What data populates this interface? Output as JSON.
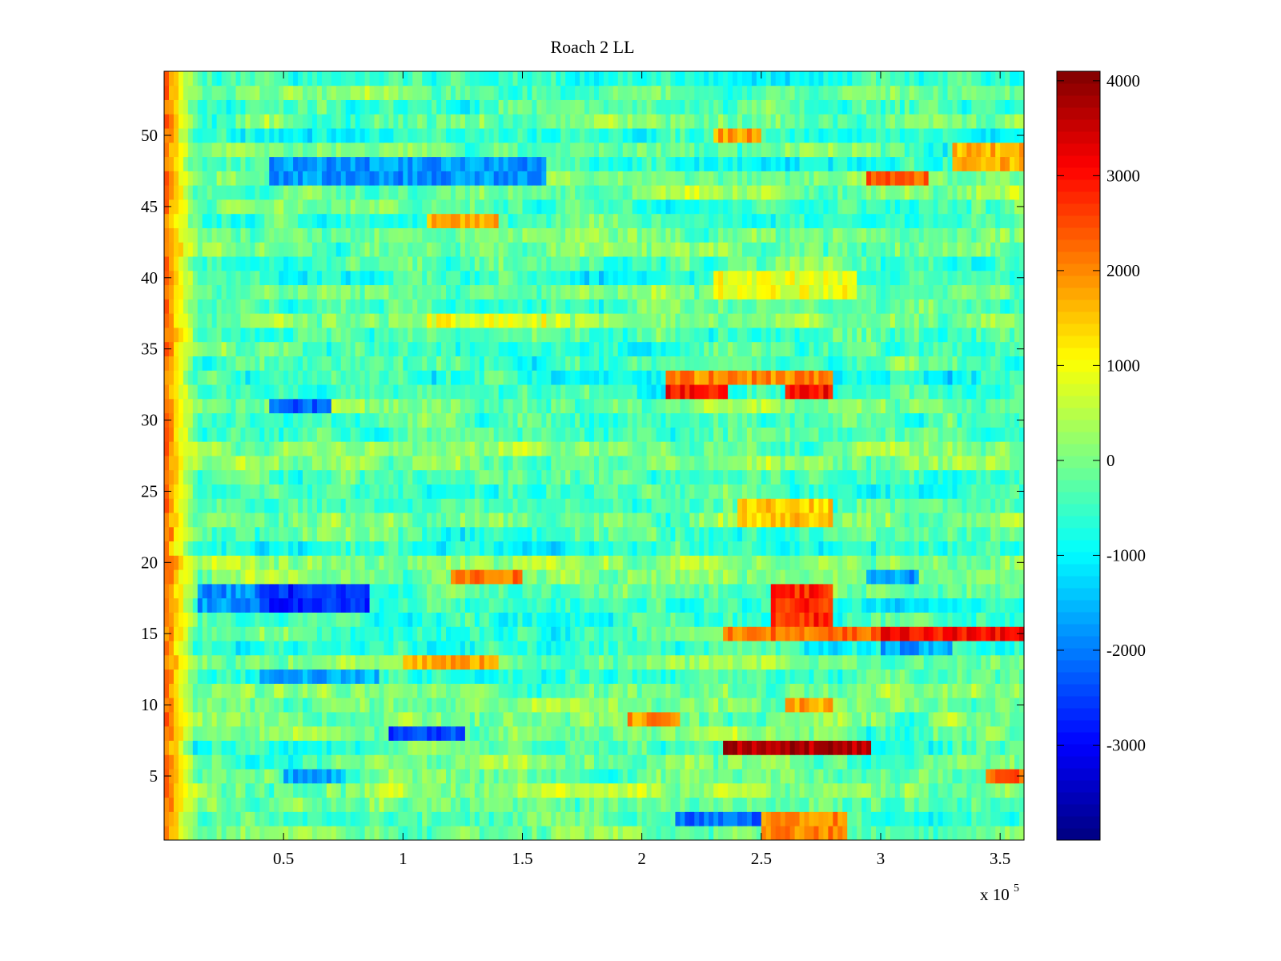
{
  "chart_data": {
    "type": "heatmap",
    "title": "Roach 2 LL",
    "xlabel": "",
    "ylabel": "",
    "x_multiplier_label": "x 10",
    "x_multiplier_exponent": "5",
    "xlim": [
      0,
      3.6
    ],
    "ylim": [
      0.5,
      54.5
    ],
    "x_ticks": [
      0.5,
      1,
      1.5,
      2,
      2.5,
      3,
      3.5
    ],
    "x_tick_labels": [
      "0.5",
      "1",
      "1.5",
      "2",
      "2.5",
      "3",
      "3.5"
    ],
    "y_ticks": [
      5,
      10,
      15,
      20,
      25,
      30,
      35,
      40,
      45,
      50
    ],
    "y_tick_labels": [
      "5",
      "10",
      "15",
      "20",
      "25",
      "30",
      "35",
      "40",
      "45",
      "50"
    ],
    "rows": 54,
    "colormap": "jet",
    "color_range": [
      -4000,
      4100
    ],
    "colorbar_ticks": [
      4000,
      3000,
      2000,
      1000,
      0,
      -1000,
      -2000,
      -3000
    ],
    "colorbar_tick_labels": [
      "4000",
      "3000",
      "2000",
      "1000",
      "0",
      "-1000",
      "-2000",
      "-3000"
    ],
    "baseline_value": -300,
    "left_edge_band": {
      "x_range": [
        0,
        0.14
      ],
      "value": 2400
    },
    "features": [
      {
        "row_range": [
          6.5,
          7.5
        ],
        "x_range": [
          2.35,
          2.95
        ],
        "value": 3700
      },
      {
        "row_range": [
          14.5,
          15.5
        ],
        "x_range": [
          3.0,
          3.6
        ],
        "value": 3000
      },
      {
        "row_range": [
          14.5,
          15.5
        ],
        "x_range": [
          2.35,
          3.0
        ],
        "value": 2200
      },
      {
        "row_range": [
          15.5,
          18.5
        ],
        "x_range": [
          2.55,
          2.8
        ],
        "value": 2800
      },
      {
        "row_range": [
          16.5,
          18.5
        ],
        "x_range": [
          0.4,
          0.85
        ],
        "value": -2700
      },
      {
        "row_range": [
          16.5,
          18.5
        ],
        "x_range": [
          0.15,
          0.4
        ],
        "value": -1800
      },
      {
        "row_range": [
          31.5,
          32.5
        ],
        "x_range": [
          2.1,
          2.35
        ],
        "value": 3000
      },
      {
        "row_range": [
          31.5,
          32.5
        ],
        "x_range": [
          2.6,
          2.8
        ],
        "value": 3000
      },
      {
        "row_range": [
          32.5,
          33.5
        ],
        "x_range": [
          2.1,
          2.8
        ],
        "value": 2000
      },
      {
        "row_range": [
          30.5,
          31.5
        ],
        "x_range": [
          0.45,
          0.7
        ],
        "value": -2200
      },
      {
        "row_range": [
          46.5,
          48.5
        ],
        "x_range": [
          0.45,
          1.6
        ],
        "value": -1800
      },
      {
        "row_range": [
          46.5,
          47.5
        ],
        "x_range": [
          2.95,
          3.2
        ],
        "value": 2300
      },
      {
        "row_range": [
          47.5,
          49.5
        ],
        "x_range": [
          3.3,
          3.6
        ],
        "value": 1700
      },
      {
        "row_range": [
          1.5,
          2.5
        ],
        "x_range": [
          2.15,
          2.5
        ],
        "value": -2200
      },
      {
        "row_range": [
          0.5,
          2.5
        ],
        "x_range": [
          2.5,
          2.85
        ],
        "value": 2100
      },
      {
        "row_range": [
          7.5,
          8.5
        ],
        "x_range": [
          0.95,
          1.25
        ],
        "value": -2400
      },
      {
        "row_range": [
          8.5,
          9.5
        ],
        "x_range": [
          1.95,
          2.15
        ],
        "value": 1900
      },
      {
        "row_range": [
          18.5,
          19.5
        ],
        "x_range": [
          1.2,
          1.5
        ],
        "value": 2200
      },
      {
        "row_range": [
          18.5,
          19.5
        ],
        "x_range": [
          2.95,
          3.15
        ],
        "value": -1700
      },
      {
        "row_range": [
          9.5,
          10.5
        ],
        "x_range": [
          2.6,
          2.8
        ],
        "value": 1800
      },
      {
        "row_range": [
          11.5,
          12.5
        ],
        "x_range": [
          0.4,
          0.9
        ],
        "value": -1600
      },
      {
        "row_range": [
          13.5,
          14.5
        ],
        "x_range": [
          3.0,
          3.3
        ],
        "value": -1700
      },
      {
        "row_range": [
          4.5,
          5.5
        ],
        "x_range": [
          0.5,
          0.75
        ],
        "value": -1600
      },
      {
        "row_range": [
          4.5,
          5.5
        ],
        "x_range": [
          3.45,
          3.6
        ],
        "value": 2400
      },
      {
        "row_range": [
          43.5,
          44.5
        ],
        "x_range": [
          1.1,
          1.4
        ],
        "value": 1600
      },
      {
        "row_range": [
          49.5,
          50.5
        ],
        "x_range": [
          2.3,
          2.5
        ],
        "value": 1800
      },
      {
        "row_range": [
          22.5,
          24.5
        ],
        "x_range": [
          2.4,
          2.8
        ],
        "value": 1500
      },
      {
        "row_range": [
          36.5,
          37.5
        ],
        "x_range": [
          1.1,
          1.6
        ],
        "value": 900
      },
      {
        "row_range": [
          38.5,
          40.5
        ],
        "x_range": [
          2.3,
          2.9
        ],
        "value": 900
      },
      {
        "row_range": [
          12.5,
          13.5
        ],
        "x_range": [
          1.0,
          1.4
        ],
        "value": 1700
      }
    ]
  }
}
